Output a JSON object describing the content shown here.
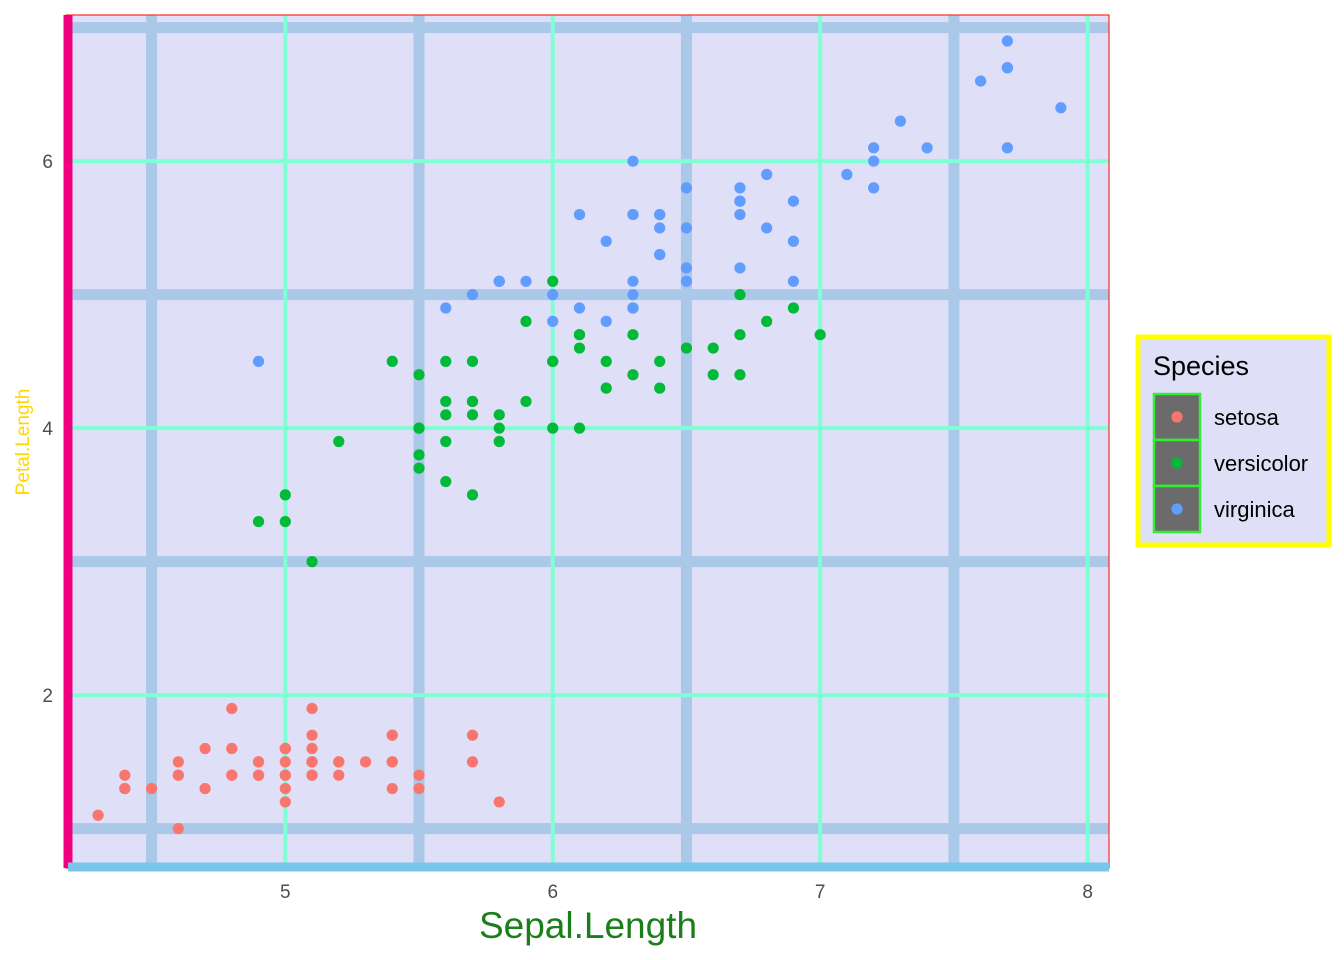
{
  "chart_data": {
    "type": "scatter",
    "title": "",
    "xlabel": "Sepal.Length",
    "ylabel": "Petal.Length",
    "xlim": [
      4.18,
      8.08
    ],
    "ylim": [
      0.705,
      7.095
    ],
    "x_ticks": [
      5,
      6,
      7,
      8
    ],
    "x_tick_labels": [
      "5",
      "6",
      "7",
      "8"
    ],
    "y_ticks": [
      2,
      4,
      6
    ],
    "y_tick_labels": [
      "2",
      "4",
      "6"
    ],
    "x_minor_grid": [
      4.5,
      5.5,
      6.5,
      7.5
    ],
    "y_minor_grid": [
      1,
      3,
      5,
      7
    ],
    "grid": true,
    "legend_title": "Species",
    "legend_position": "right",
    "colors": {
      "panel_background": "#dfdff8",
      "major_grid": "#7fffd4",
      "minor_grid": "#aac8e8",
      "y_axis_line": "#f0007f",
      "x_axis_line": "#7ac6ea",
      "panel_border": "#ff2a2a",
      "legend_border": "#ffff00",
      "legend_key_fill": "#6b6b6b",
      "legend_key_border": "#33ee33"
    },
    "series": [
      {
        "name": "setosa",
        "color": "#f8766d",
        "points": [
          [
            5.1,
            1.4
          ],
          [
            4.9,
            1.4
          ],
          [
            4.7,
            1.3
          ],
          [
            4.6,
            1.5
          ],
          [
            5.0,
            1.4
          ],
          [
            5.4,
            1.7
          ],
          [
            4.6,
            1.4
          ],
          [
            5.0,
            1.5
          ],
          [
            4.4,
            1.4
          ],
          [
            4.9,
            1.5
          ],
          [
            5.4,
            1.5
          ],
          [
            4.8,
            1.6
          ],
          [
            4.8,
            1.4
          ],
          [
            4.3,
            1.1
          ],
          [
            5.8,
            1.2
          ],
          [
            5.7,
            1.5
          ],
          [
            5.4,
            1.3
          ],
          [
            5.1,
            1.4
          ],
          [
            5.7,
            1.7
          ],
          [
            5.1,
            1.5
          ],
          [
            5.4,
            1.7
          ],
          [
            5.1,
            1.5
          ],
          [
            4.6,
            1.0
          ],
          [
            5.1,
            1.7
          ],
          [
            4.8,
            1.9
          ],
          [
            5.0,
            1.6
          ],
          [
            5.0,
            1.6
          ],
          [
            5.2,
            1.5
          ],
          [
            5.2,
            1.4
          ],
          [
            4.7,
            1.6
          ],
          [
            4.8,
            1.6
          ],
          [
            5.4,
            1.5
          ],
          [
            5.2,
            1.5
          ],
          [
            5.5,
            1.4
          ],
          [
            4.9,
            1.5
          ],
          [
            5.0,
            1.2
          ],
          [
            5.5,
            1.3
          ],
          [
            4.9,
            1.4
          ],
          [
            4.4,
            1.3
          ],
          [
            5.1,
            1.5
          ],
          [
            5.0,
            1.3
          ],
          [
            4.5,
            1.3
          ],
          [
            4.4,
            1.3
          ],
          [
            5.0,
            1.6
          ],
          [
            5.1,
            1.9
          ],
          [
            4.8,
            1.4
          ],
          [
            5.1,
            1.6
          ],
          [
            4.6,
            1.4
          ],
          [
            5.3,
            1.5
          ],
          [
            5.0,
            1.4
          ]
        ]
      },
      {
        "name": "versicolor",
        "color": "#00ba38",
        "points": [
          [
            7.0,
            4.7
          ],
          [
            6.4,
            4.5
          ],
          [
            6.9,
            4.9
          ],
          [
            5.5,
            4.0
          ],
          [
            6.5,
            4.6
          ],
          [
            5.7,
            4.5
          ],
          [
            6.3,
            4.7
          ],
          [
            4.9,
            3.3
          ],
          [
            6.6,
            4.6
          ],
          [
            5.2,
            3.9
          ],
          [
            5.0,
            3.5
          ],
          [
            5.9,
            4.2
          ],
          [
            6.0,
            4.0
          ],
          [
            6.1,
            4.7
          ],
          [
            5.6,
            3.6
          ],
          [
            6.7,
            4.4
          ],
          [
            5.6,
            4.5
          ],
          [
            5.8,
            4.1
          ],
          [
            6.2,
            4.5
          ],
          [
            5.6,
            3.9
          ],
          [
            5.9,
            4.8
          ],
          [
            6.1,
            4.0
          ],
          [
            6.3,
            4.9
          ],
          [
            6.1,
            4.7
          ],
          [
            6.4,
            4.3
          ],
          [
            6.6,
            4.4
          ],
          [
            6.8,
            4.8
          ],
          [
            6.7,
            5.0
          ],
          [
            6.0,
            4.5
          ],
          [
            5.7,
            3.5
          ],
          [
            5.5,
            3.8
          ],
          [
            5.5,
            3.7
          ],
          [
            5.8,
            3.9
          ],
          [
            6.0,
            5.1
          ],
          [
            5.4,
            4.5
          ],
          [
            6.0,
            4.5
          ],
          [
            6.7,
            4.7
          ],
          [
            6.3,
            4.4
          ],
          [
            5.6,
            4.1
          ],
          [
            5.5,
            4.0
          ],
          [
            5.5,
            4.4
          ],
          [
            6.1,
            4.6
          ],
          [
            5.8,
            4.0
          ],
          [
            5.0,
            3.3
          ],
          [
            5.6,
            4.2
          ],
          [
            5.7,
            4.2
          ],
          [
            5.7,
            4.2
          ],
          [
            6.2,
            4.3
          ],
          [
            5.1,
            3.0
          ],
          [
            5.7,
            4.1
          ]
        ]
      },
      {
        "name": "virginica",
        "color": "#619cff",
        "points": [
          [
            6.3,
            6.0
          ],
          [
            5.8,
            5.1
          ],
          [
            7.1,
            5.9
          ],
          [
            6.3,
            5.6
          ],
          [
            6.5,
            5.8
          ],
          [
            7.6,
            6.6
          ],
          [
            4.9,
            4.5
          ],
          [
            7.3,
            6.3
          ],
          [
            6.7,
            5.8
          ],
          [
            7.2,
            6.1
          ],
          [
            6.5,
            5.1
          ],
          [
            6.4,
            5.3
          ],
          [
            6.8,
            5.5
          ],
          [
            5.7,
            5.0
          ],
          [
            5.8,
            5.1
          ],
          [
            6.4,
            5.3
          ],
          [
            6.5,
            5.5
          ],
          [
            7.7,
            6.7
          ],
          [
            7.7,
            6.9
          ],
          [
            6.0,
            5.0
          ],
          [
            6.9,
            5.7
          ],
          [
            5.6,
            4.9
          ],
          [
            7.7,
            6.7
          ],
          [
            6.3,
            4.9
          ],
          [
            6.7,
            5.7
          ],
          [
            7.2,
            6.0
          ],
          [
            6.2,
            4.8
          ],
          [
            6.1,
            4.9
          ],
          [
            6.4,
            5.6
          ],
          [
            7.2,
            5.8
          ],
          [
            7.4,
            6.1
          ],
          [
            7.9,
            6.4
          ],
          [
            6.4,
            5.6
          ],
          [
            6.3,
            5.1
          ],
          [
            6.1,
            5.6
          ],
          [
            7.7,
            6.1
          ],
          [
            6.3,
            5.6
          ],
          [
            6.4,
            5.5
          ],
          [
            6.0,
            4.8
          ],
          [
            6.9,
            5.4
          ],
          [
            6.7,
            5.6
          ],
          [
            6.9,
            5.1
          ],
          [
            5.8,
            5.1
          ],
          [
            6.8,
            5.9
          ],
          [
            6.7,
            5.7
          ],
          [
            6.7,
            5.2
          ],
          [
            6.3,
            5.0
          ],
          [
            6.5,
            5.2
          ],
          [
            6.2,
            5.4
          ],
          [
            5.9,
            5.1
          ]
        ]
      }
    ]
  }
}
